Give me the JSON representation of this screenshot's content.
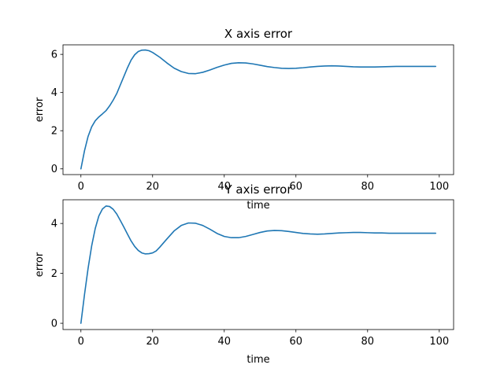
{
  "chart_data": [
    {
      "type": "line",
      "title": "X axis error",
      "xlabel": "time",
      "ylabel": "error",
      "xlim": [
        -5,
        104
      ],
      "ylim": [
        -0.3,
        6.5
      ],
      "xticks": [
        0,
        20,
        40,
        60,
        80,
        100
      ],
      "yticks": [
        0,
        2,
        4,
        6
      ],
      "color": "#1f77b4",
      "series": [
        {
          "x": [
            0,
            1,
            2,
            3,
            4,
            5,
            6,
            7,
            8,
            9,
            10,
            11,
            12,
            13,
            14,
            15,
            16,
            17,
            18,
            19,
            20,
            22,
            24,
            26,
            28,
            30,
            32,
            34,
            36,
            38,
            40,
            42,
            44,
            46,
            48,
            50,
            52,
            54,
            56,
            58,
            60,
            62,
            64,
            66,
            68,
            70,
            72,
            74,
            76,
            78,
            80,
            82,
            84,
            86,
            88,
            90,
            92,
            94,
            96,
            98,
            99
          ],
          "y": [
            0,
            0.95,
            1.7,
            2.2,
            2.52,
            2.72,
            2.88,
            3.05,
            3.3,
            3.6,
            3.95,
            4.4,
            4.85,
            5.3,
            5.7,
            5.98,
            6.15,
            6.22,
            6.23,
            6.19,
            6.1,
            5.85,
            5.55,
            5.28,
            5.1,
            5.0,
            4.99,
            5.06,
            5.18,
            5.32,
            5.44,
            5.53,
            5.56,
            5.55,
            5.5,
            5.43,
            5.36,
            5.31,
            5.27,
            5.26,
            5.27,
            5.3,
            5.34,
            5.37,
            5.39,
            5.4,
            5.39,
            5.37,
            5.35,
            5.34,
            5.34,
            5.34,
            5.35,
            5.36,
            5.37,
            5.37,
            5.37,
            5.37,
            5.37,
            5.37,
            5.37
          ]
        }
      ]
    },
    {
      "type": "line",
      "title": "Y axis error",
      "xlabel": "time",
      "ylabel": "error",
      "xlim": [
        -5,
        104
      ],
      "ylim": [
        -0.25,
        4.95
      ],
      "xticks": [
        0,
        20,
        40,
        60,
        80,
        100
      ],
      "yticks": [
        0,
        2,
        4
      ],
      "color": "#1f77b4",
      "series": [
        {
          "x": [
            0,
            1,
            2,
            3,
            4,
            5,
            6,
            7,
            8,
            9,
            10,
            11,
            12,
            13,
            14,
            15,
            16,
            17,
            18,
            19,
            20,
            21,
            22,
            24,
            26,
            28,
            30,
            32,
            34,
            36,
            38,
            40,
            42,
            44,
            46,
            48,
            50,
            52,
            54,
            56,
            58,
            60,
            62,
            64,
            66,
            68,
            70,
            72,
            74,
            76,
            78,
            80,
            82,
            84,
            86,
            88,
            90,
            92,
            94,
            96,
            98,
            99
          ],
          "y": [
            0,
            1.15,
            2.2,
            3.1,
            3.8,
            4.3,
            4.58,
            4.7,
            4.68,
            4.57,
            4.38,
            4.12,
            3.85,
            3.57,
            3.3,
            3.08,
            2.92,
            2.82,
            2.78,
            2.79,
            2.82,
            2.9,
            3.05,
            3.38,
            3.7,
            3.92,
            4.02,
            4.01,
            3.92,
            3.77,
            3.6,
            3.48,
            3.43,
            3.43,
            3.48,
            3.56,
            3.64,
            3.7,
            3.72,
            3.71,
            3.68,
            3.64,
            3.6,
            3.58,
            3.57,
            3.58,
            3.6,
            3.62,
            3.63,
            3.64,
            3.64,
            3.63,
            3.62,
            3.62,
            3.61,
            3.61,
            3.61,
            3.61,
            3.61,
            3.61,
            3.61,
            3.61
          ]
        }
      ]
    }
  ]
}
